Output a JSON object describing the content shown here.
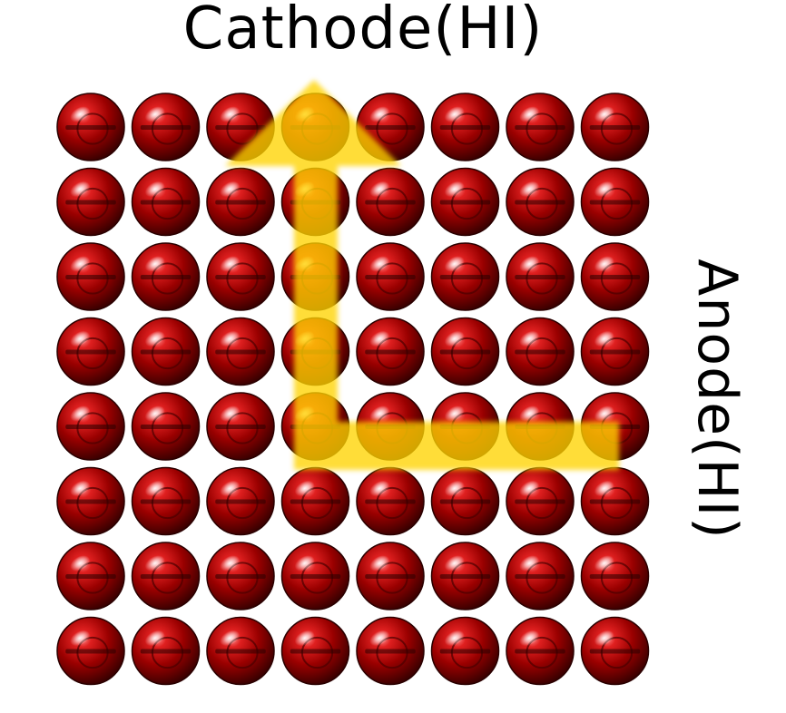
{
  "labels": {
    "cathode": "Cathode(HI)",
    "anode": "Anode(HI)"
  },
  "grid": {
    "rows": 8,
    "cols": 8
  },
  "path": {
    "description_cells": [
      [
        4,
        7
      ],
      [
        4,
        4
      ],
      [
        3,
        4
      ],
      [
        3,
        0
      ]
    ],
    "arrow_head_at": "cathode"
  },
  "colors": {
    "sphere_dark": "#5a0000",
    "sphere_mid": "#b00000",
    "sphere_light": "#ff6a6a",
    "path_fill": "#ffd400",
    "text": "#000000",
    "background": "#ffffff"
  }
}
